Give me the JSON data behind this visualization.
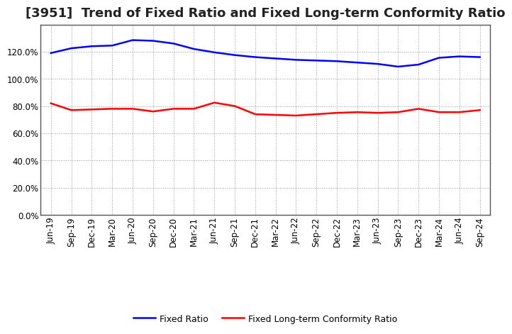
{
  "title": "[3951]  Trend of Fixed Ratio and Fixed Long-term Conformity Ratio",
  "x_labels": [
    "Jun-19",
    "Sep-19",
    "Dec-19",
    "Mar-20",
    "Jun-20",
    "Sep-20",
    "Dec-20",
    "Mar-21",
    "Jun-21",
    "Sep-21",
    "Dec-21",
    "Mar-22",
    "Jun-22",
    "Sep-22",
    "Dec-22",
    "Mar-23",
    "Jun-23",
    "Sep-23",
    "Dec-23",
    "Mar-24",
    "Jun-24",
    "Sep-24"
  ],
  "fixed_ratio": [
    119.0,
    122.5,
    124.0,
    124.5,
    128.5,
    128.0,
    126.0,
    122.0,
    119.5,
    117.5,
    116.0,
    115.0,
    114.0,
    113.5,
    113.0,
    112.0,
    111.0,
    109.0,
    110.5,
    115.5,
    116.5,
    116.0
  ],
  "fixed_lt_ratio": [
    82.0,
    77.0,
    77.5,
    78.0,
    78.0,
    76.0,
    78.0,
    78.0,
    82.5,
    80.0,
    74.0,
    73.5,
    73.0,
    74.0,
    75.0,
    75.5,
    75.0,
    75.5,
    78.0,
    75.5,
    75.5,
    77.0
  ],
  "fixed_ratio_color": "#0000ff",
  "fixed_lt_ratio_color": "#ff0000",
  "ylim": [
    0,
    140
  ],
  "yticks": [
    0,
    20,
    40,
    60,
    80,
    100,
    120
  ],
  "fig_bg": "#ffffff",
  "plot_bg": "#ffffff",
  "grid_color": "#999999",
  "spine_color": "#555555",
  "line_width": 1.8,
  "title_fontsize": 13,
  "tick_fontsize": 8.5,
  "legend_fontsize": 9
}
